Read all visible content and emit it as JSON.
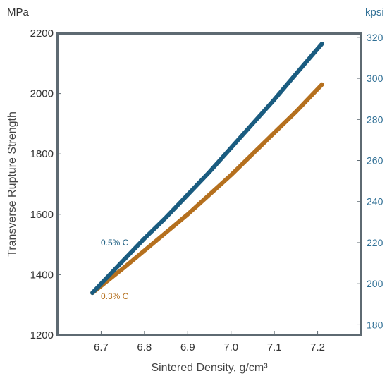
{
  "chart_data": {
    "type": "line",
    "title": "",
    "xlabel": "Sintered Density, g/cm³",
    "ylabel": "Transverse Rupture Strength",
    "ylabel_unit_left": "MPa",
    "ylabel_unit_right": "kpsi",
    "xlim": [
      6.6,
      7.3
    ],
    "ylim": [
      1200,
      2200
    ],
    "y2lim": [
      175,
      322
    ],
    "x_ticks": [
      "6.7",
      "6.8",
      "6.9",
      "7.0",
      "7.1",
      "7.2"
    ],
    "y_ticks": [
      "1200",
      "1400",
      "1600",
      "1800",
      "2000",
      "2200"
    ],
    "y2_ticks": [
      "180",
      "200",
      "220",
      "240",
      "260",
      "280",
      "300",
      "320"
    ],
    "grid": false,
    "legend": "inline labels",
    "series": [
      {
        "name": "0.5% C",
        "color": "#1a5c80",
        "x": [
          6.68,
          6.75,
          6.8,
          6.85,
          6.9,
          6.95,
          7.0,
          7.05,
          7.1,
          7.15,
          7.21
        ],
        "y": [
          1340,
          1445,
          1520,
          1590,
          1665,
          1740,
          1820,
          1900,
          1980,
          2065,
          2165
        ]
      },
      {
        "name": "0.3% C",
        "color": "#b5701e",
        "x": [
          6.68,
          6.75,
          6.8,
          6.85,
          6.9,
          6.95,
          7.0,
          7.05,
          7.1,
          7.15,
          7.21
        ],
        "y": [
          1340,
          1420,
          1480,
          1540,
          1600,
          1665,
          1730,
          1800,
          1870,
          1940,
          2030
        ]
      }
    ]
  }
}
